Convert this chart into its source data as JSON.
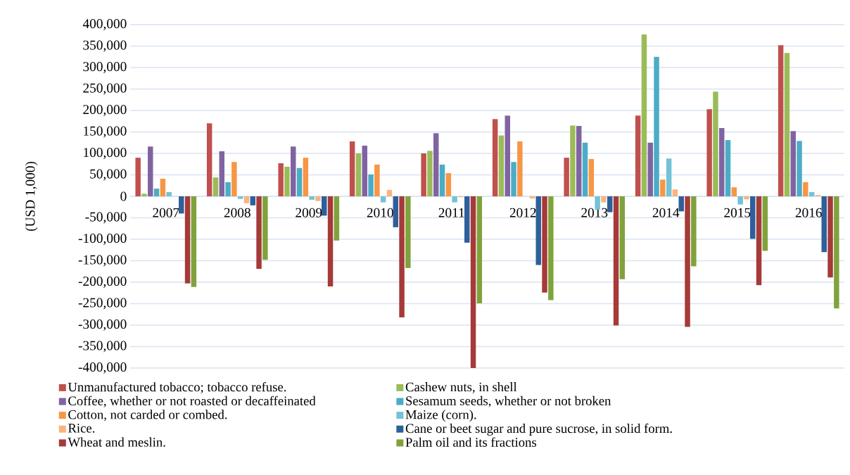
{
  "chart_data": {
    "type": "bar",
    "ylabel": "(USD 1,000)",
    "categories": [
      "2007",
      "2008",
      "2009",
      "2010",
      "2011",
      "2012",
      "2013",
      "2014",
      "2015",
      "2016"
    ],
    "series": [
      {
        "name": "Unmanufactured tobacco; tobacco refuse.",
        "color": "#c0504d",
        "values": [
          90000,
          170000,
          77000,
          128000,
          100000,
          180000,
          90000,
          188000,
          203000,
          352000
        ]
      },
      {
        "name": "Cashew nuts, in shell",
        "color": "#9bbb59",
        "values": [
          6000,
          44000,
          69000,
          100000,
          106000,
          142000,
          165000,
          377000,
          244000,
          334000
        ]
      },
      {
        "name": "Coffee, whether or not roasted or decaffeinated",
        "color": "#8064a2",
        "values": [
          116000,
          105000,
          116000,
          118000,
          147000,
          188000,
          164000,
          125000,
          159000,
          152000
        ]
      },
      {
        "name": "Sesamum seeds, whether or not broken",
        "color": "#4bacc6",
        "values": [
          18000,
          33000,
          66000,
          51000,
          74000,
          80000,
          125000,
          325000,
          131000,
          129000
        ]
      },
      {
        "name": "Cotton, not carded or combed.",
        "color": "#f79646",
        "values": [
          41000,
          80000,
          90000,
          74000,
          54000,
          128000,
          87000,
          39000,
          21000,
          33000
        ]
      },
      {
        "name": "Maize (corn).",
        "color": "#72c2d8",
        "values": [
          10000,
          -6000,
          -8000,
          -14000,
          -14000,
          0,
          -31000,
          88000,
          -19000,
          10000
        ]
      },
      {
        "name": "Rice.",
        "color": "#fbb37d",
        "values": [
          0,
          -16000,
          -11000,
          15000,
          -2000,
          -5000,
          -14000,
          16000,
          -7000,
          3000
        ]
      },
      {
        "name": "Cane or beet sugar and pure sucrose, in solid form.",
        "color": "#2f5f9b",
        "values": [
          -40000,
          -21000,
          -45000,
          -72000,
          -108000,
          -160000,
          -37000,
          -35000,
          -99000,
          -130000
        ]
      },
      {
        "name": "Wheat and meslin.",
        "color": "#a53a38",
        "values": [
          -203000,
          -169000,
          -210000,
          -282000,
          -400000,
          -224000,
          -301000,
          -304000,
          -207000,
          -189000
        ]
      },
      {
        "name": "Palm oil and its fractions",
        "color": "#80a23c",
        "values": [
          -211000,
          -148000,
          -103000,
          -167000,
          -249000,
          -242000,
          -193000,
          -163000,
          -127000,
          -261000
        ]
      }
    ],
    "ylim": [
      -400000,
      400000
    ],
    "yticks": [
      {
        "value": -400000,
        "label": "-400,000"
      },
      {
        "value": -350000,
        "label": "-350,000"
      },
      {
        "value": -300000,
        "label": "-300,000"
      },
      {
        "value": -250000,
        "label": "-250,000"
      },
      {
        "value": -200000,
        "label": "-200,000"
      },
      {
        "value": -150000,
        "label": "-150,000"
      },
      {
        "value": -100000,
        "label": "-100,000"
      },
      {
        "value": -50000,
        "label": "-50,000"
      },
      {
        "value": 0,
        "label": "0"
      },
      {
        "value": 50000,
        "label": "50,000"
      },
      {
        "value": 100000,
        "label": "100,000"
      },
      {
        "value": 150000,
        "label": "150,000"
      },
      {
        "value": 200000,
        "label": "200,000"
      },
      {
        "value": 250000,
        "label": "250,000"
      },
      {
        "value": 300000,
        "label": "300,000"
      },
      {
        "value": 350000,
        "label": "350,000"
      },
      {
        "value": 400000,
        "label": "400,000"
      }
    ],
    "grid": "y",
    "legend": "bottom"
  }
}
